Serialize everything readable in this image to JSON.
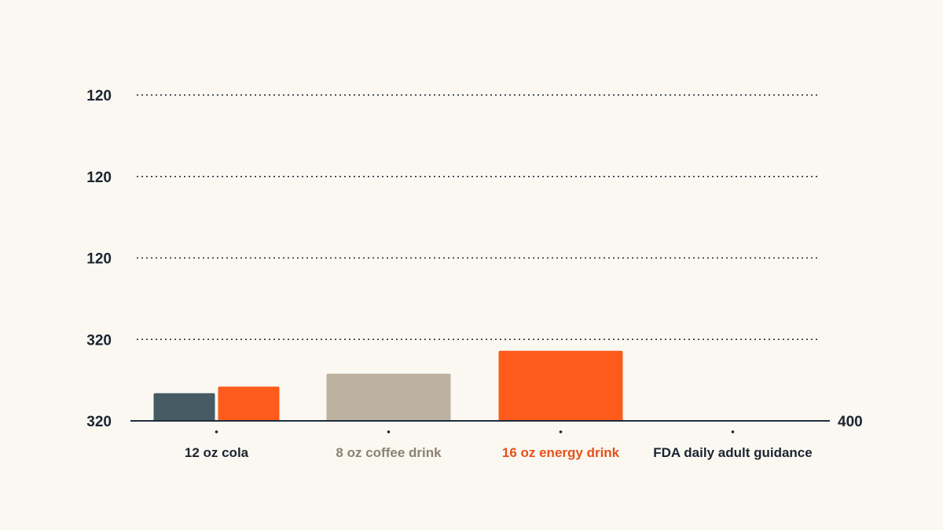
{
  "chart_data": {
    "type": "bar",
    "title": "",
    "xlabel": "",
    "ylabel": "",
    "categories": [
      "12 oz cola",
      "8 oz coffee drink",
      "16 oz energy drink",
      "FDA daily adult guidance"
    ],
    "y_tick_labels": [
      "320",
      "320",
      "120",
      "120",
      "120"
    ],
    "right_axis_label": "400",
    "ylim": [
      0,
      400
    ],
    "grid": true,
    "bars": [
      {
        "category": "12 oz cola",
        "value": 34,
        "color": "#465b64"
      },
      {
        "category": "12 oz cola",
        "value": 42,
        "color": "#fc5b1b"
      },
      {
        "category": "8 oz coffee drink",
        "value": 58,
        "color": "#bdb2a1"
      },
      {
        "category": "16 oz energy drink",
        "value": 86,
        "color": "#fc5b1b"
      }
    ],
    "category_label_colors": [
      "#1b2430",
      "#8c8172",
      "#e8501a",
      "#1b2430"
    ]
  }
}
